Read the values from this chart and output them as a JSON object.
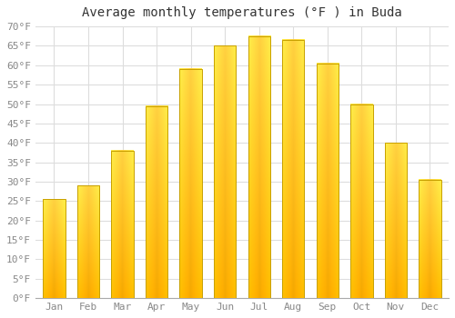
{
  "title": "Average monthly temperatures (°F ) in Buda",
  "months": [
    "Jan",
    "Feb",
    "Mar",
    "Apr",
    "May",
    "Jun",
    "Jul",
    "Aug",
    "Sep",
    "Oct",
    "Nov",
    "Dec"
  ],
  "values": [
    25.5,
    29.0,
    38.0,
    49.5,
    59.0,
    65.0,
    67.5,
    66.5,
    60.5,
    50.0,
    40.0,
    30.5
  ],
  "bar_color_bottom": "#F5A800",
  "bar_color_top": "#FFD040",
  "bar_edge_color": "#C8A000",
  "ylim": [
    0,
    70
  ],
  "ytick_step": 5,
  "background_color": "#FFFFFF",
  "plot_bg_color": "#FFFFFF",
  "grid_color": "#DDDDDD",
  "title_fontsize": 10,
  "tick_fontsize": 8,
  "tick_font": "monospace"
}
